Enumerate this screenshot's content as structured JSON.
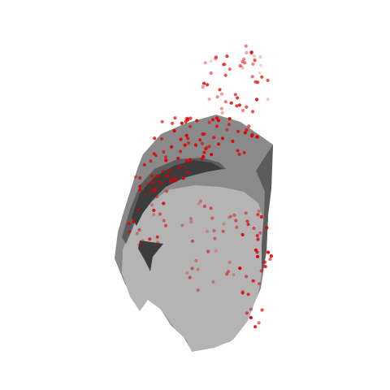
{
  "figure": {
    "background": "#ffffff",
    "colors": {
      "surface_light": "#b4b4b4",
      "surface_mid": "#8a8a8a",
      "surface_dark": "#5c5c5c",
      "surface_darkest": "#3c3c3c",
      "points": "#dd0000"
    },
    "point_count": 230
  }
}
